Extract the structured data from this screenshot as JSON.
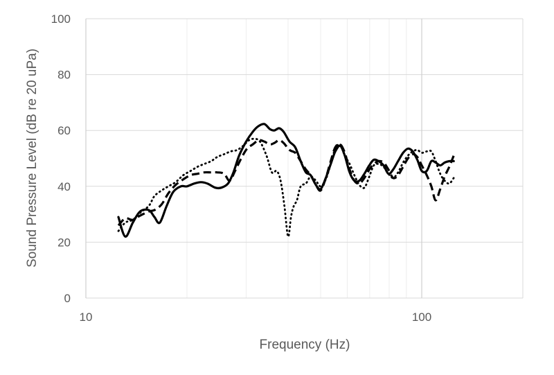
{
  "chart_data": {
    "type": "line",
    "title": "",
    "xlabel": "Frequency (Hz)",
    "ylabel": "Sound Pressure Level (dB re 20 uPa)",
    "xscale": "log",
    "xlim": [
      10,
      200
    ],
    "ylim": [
      0,
      100
    ],
    "xticks": [
      "10",
      "100"
    ],
    "xtick_values": [
      10,
      100
    ],
    "yticks": [
      "0",
      "20",
      "40",
      "60",
      "80",
      "100"
    ],
    "ytick_values": [
      0,
      20,
      40,
      60,
      80,
      100
    ],
    "grid": true,
    "legend": "none",
    "series": [
      {
        "style": "solid",
        "x": [
          12.5,
          13.1,
          13.8,
          14.5,
          15.4,
          16.0,
          16.6,
          17.4,
          18.2,
          19.2,
          20.0,
          21.0,
          22.0,
          23.0,
          24.3,
          25.3,
          26.5,
          27.5,
          28.6,
          30.0,
          31.4,
          32.6,
          34.0,
          35.3,
          36.4,
          37.6,
          38.8,
          40.4,
          42.0,
          43.6,
          45.2,
          46.7,
          48.4,
          50.0,
          51.8,
          53.6,
          55.3,
          57.2,
          59.0,
          61.0,
          63.0,
          65.2,
          67.5,
          69.8,
          72.0,
          74.4,
          77.0,
          79.6,
          82.2,
          85.0,
          88.0,
          91.0,
          94.0,
          97.0,
          100.0,
          103.5,
          106.8,
          110.0,
          113.5,
          117.0,
          120.8,
          124.5
        ],
        "y": [
          29,
          22,
          27,
          31,
          31.5,
          29,
          27,
          33,
          38,
          40,
          40,
          41,
          41.5,
          41,
          39.5,
          39.5,
          41,
          45,
          51,
          56,
          59.5,
          61.5,
          62.3,
          60.5,
          60,
          60.8,
          59.5,
          56,
          54,
          49,
          45,
          44,
          40.5,
          39,
          43,
          48,
          52.5,
          54.5,
          51,
          45,
          42,
          42,
          44.5,
          47.5,
          49.5,
          49,
          47.5,
          44.5,
          46,
          49,
          52,
          53.5,
          52.5,
          49.5,
          45.5,
          45.5,
          49,
          48.5,
          47.5,
          48.5,
          49,
          49
        ]
      },
      {
        "style": "dashed",
        "x": [
          12.5,
          13.1,
          13.8,
          14.5,
          15.4,
          16.0,
          16.8,
          17.6,
          18.5,
          19.5,
          20.5,
          21.5,
          22.5,
          23.6,
          24.6,
          25.8,
          26.8,
          27.8,
          29.0,
          30.2,
          31.4,
          32.7,
          34.0,
          35.3,
          36.4,
          37.6,
          38.8,
          40.4,
          42.0,
          43.6,
          45.2,
          46.7,
          48.4,
          50.0,
          51.8,
          53.6,
          55.3,
          57.2,
          59.0,
          61.0,
          63.0,
          65.2,
          67.5,
          69.8,
          72.0,
          74.4,
          77.0,
          79.6,
          82.2,
          85.0,
          88.0,
          91.0,
          94.0,
          97.0,
          100.0,
          103.5,
          106.8,
          110.0,
          113.5,
          117.0,
          120.8,
          124.5
        ],
        "y": [
          26,
          28.5,
          28,
          29.5,
          31,
          31.5,
          33.5,
          37.5,
          40.5,
          42.5,
          44,
          44.5,
          45,
          45,
          45,
          44.5,
          42,
          45.5,
          50,
          53.5,
          55,
          56.5,
          56,
          55,
          55.5,
          56.5,
          55.5,
          53,
          52,
          49,
          46,
          44,
          40.5,
          38.5,
          43,
          49,
          54,
          55,
          52,
          46,
          42,
          41,
          43,
          46,
          48,
          49,
          48.5,
          46,
          43,
          44,
          47,
          50,
          51.5,
          50.5,
          47.5,
          44,
          40,
          35,
          39,
          43.5,
          47,
          51
        ]
      },
      {
        "style": "dotted",
        "x": [
          12.5,
          13.1,
          13.8,
          14.5,
          15.4,
          16.0,
          16.8,
          17.6,
          18.5,
          19.5,
          20.5,
          21.5,
          22.5,
          23.6,
          24.6,
          25.8,
          27.0,
          28.2,
          29.4,
          30.6,
          31.8,
          33.0,
          34.5,
          35.8,
          37.0,
          38.0,
          39.0,
          40.0,
          40.8,
          41.6,
          42.5,
          43.6,
          45.2,
          46.7,
          48.4,
          50.0,
          51.8,
          53.6,
          55.3,
          57.2,
          59.0,
          61.0,
          63.0,
          65.2,
          67.5,
          69.8,
          72.0,
          74.4,
          77.0,
          79.6,
          82.2,
          85.0,
          88.0,
          91.0,
          94.0,
          97.0,
          100.0,
          103.5,
          106.8,
          110.0,
          113.5,
          117.0,
          120.8,
          124.5
        ],
        "y": [
          24,
          27,
          28,
          30.5,
          33,
          36.5,
          38.5,
          40,
          41.5,
          44,
          45.5,
          47,
          48,
          49,
          50.5,
          51.5,
          52.5,
          53,
          54.5,
          56.5,
          57,
          56,
          51,
          45,
          45.5,
          42,
          33,
          22,
          29,
          33,
          35,
          40,
          41,
          43.5,
          42,
          40,
          42.5,
          48,
          53.5,
          55,
          51,
          48,
          44,
          40.5,
          39.5,
          43.5,
          47.5,
          48,
          47,
          44.5,
          43,
          45,
          48.5,
          51,
          52.5,
          53,
          52,
          52.5,
          52.5,
          49,
          44.5,
          42,
          41,
          43
        ]
      }
    ]
  }
}
